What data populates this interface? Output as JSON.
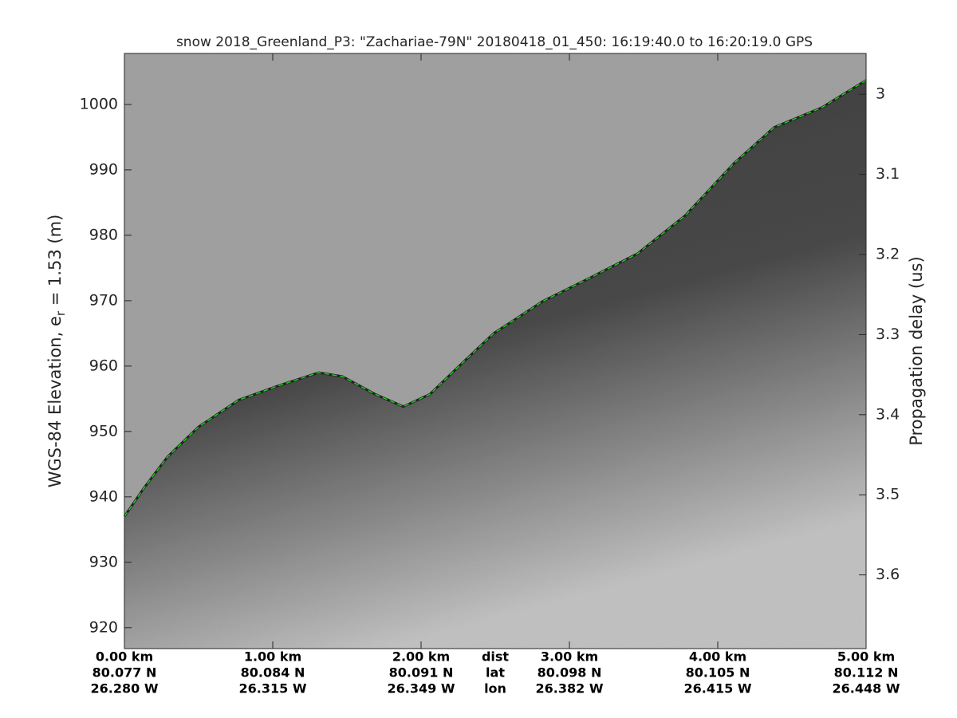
{
  "chart_data": {
    "type": "echogram",
    "title": "snow 2018_Greenland_P3: \"Zachariae-79N\"  20180418_01_450: 16:19:40.0 to 16:20:19.0 GPS",
    "ylabel": "WGS-84 Elevation, e",
    "ylabel_sub": "r",
    "ylabel_end": " = 1.53 (m)",
    "y2label": "Propagation delay (us)",
    "xlim": [
      0,
      5
    ],
    "ylim": [
      916.8,
      1007.8
    ],
    "y2lim": [
      3.692,
      2.949
    ],
    "xticks": [
      {
        "value": 0,
        "label": "0.00 km"
      },
      {
        "value": 1,
        "label": "1.00 km"
      },
      {
        "value": 2,
        "label": "2.00 km"
      },
      {
        "value": 3,
        "label": "3.00 km"
      },
      {
        "value": 4,
        "label": "4.00 km"
      },
      {
        "value": 5,
        "label": "5.00 km"
      }
    ],
    "lat_labels": [
      "80.077 N",
      "80.084 N",
      "80.091 N",
      "80.098 N",
      "80.105 N",
      "80.112 N"
    ],
    "lon_labels": [
      "26.280 W",
      "26.315 W",
      "26.349 W",
      "26.382 W",
      "26.415 W",
      "26.448 W"
    ],
    "row_labels": [
      "dist",
      "lat",
      "lon"
    ],
    "yticks": [
      920,
      930,
      940,
      950,
      960,
      970,
      980,
      990,
      1000
    ],
    "y2ticks": [
      3,
      3.1,
      3.2,
      3.3,
      3.4,
      3.5,
      3.6
    ],
    "series": [
      {
        "name": "surface",
        "color": "#22cc22",
        "x": [
          0,
          0.13,
          0.29,
          0.5,
          0.77,
          1.04,
          1.31,
          1.47,
          1.69,
          1.88,
          2.06,
          2.28,
          2.49,
          2.82,
          3.14,
          3.46,
          3.78,
          4.11,
          4.38,
          4.7,
          5.0
        ],
        "values": [
          937.0,
          941.3,
          946.1,
          950.7,
          954.8,
          957.0,
          959.0,
          958.4,
          955.7,
          953.8,
          955.7,
          960.5,
          965.0,
          969.9,
          973.5,
          977.2,
          983.0,
          991.0,
          996.5,
          999.5,
          1003.7
        ]
      }
    ]
  }
}
